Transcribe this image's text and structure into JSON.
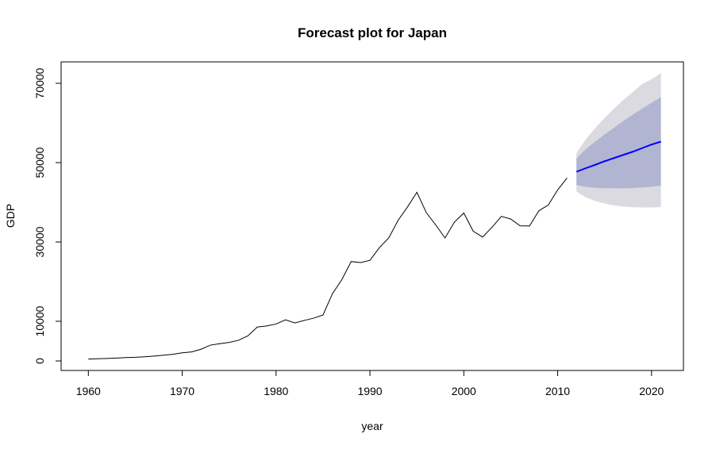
{
  "chart_data": {
    "type": "line",
    "title": "Forecast plot for Japan",
    "xlabel": "year",
    "ylabel": "GDP",
    "xlim": [
      1957.1,
      2023.4
    ],
    "ylim": [
      -2400,
      75400
    ],
    "x_ticks": [
      1960,
      1970,
      1980,
      1990,
      2000,
      2010,
      2020
    ],
    "x_tick_labels": [
      "1960",
      "1970",
      "1980",
      "1990",
      "2000",
      "2010",
      "2020"
    ],
    "y_ticks": [
      0,
      10000,
      30000,
      50000,
      70000
    ],
    "y_tick_labels": [
      "0",
      "10000",
      "30000",
      "50000",
      "70000"
    ],
    "grid": false,
    "legend": "none",
    "colors": {
      "history": "#000000",
      "forecast": "#0000ff",
      "band_95": "#dadae0",
      "band_80": "#b1b5d1"
    },
    "series": [
      {
        "type": "history",
        "x": [
          1960,
          1961,
          1962,
          1963,
          1964,
          1965,
          1966,
          1967,
          1968,
          1969,
          1970,
          1971,
          1972,
          1973,
          1974,
          1975,
          1976,
          1977,
          1978,
          1979,
          1980,
          1981,
          1982,
          1983,
          1984,
          1985,
          1986,
          1987,
          1988,
          1989,
          1990,
          1991,
          1992,
          1993,
          1994,
          1995,
          1996,
          1997,
          1998,
          1999,
          2000,
          2001,
          2002,
          2003,
          2004,
          2005,
          2006,
          2007,
          2008,
          2009,
          2010,
          2011
        ],
        "values": [
          480,
          560,
          630,
          720,
          840,
          920,
          1060,
          1230,
          1450,
          1670,
          2040,
          2270,
          2950,
          3990,
          4350,
          4680,
          5210,
          6330,
          8550,
          8820,
          9310,
          10360,
          9580,
          10210,
          10790,
          11580,
          16930,
          20480,
          25060,
          24810,
          25360,
          28540,
          31010,
          35450,
          38810,
          42520,
          37420,
          34300,
          31000,
          35000,
          37300,
          32720,
          31240,
          33690,
          36440,
          35780,
          34080,
          34030,
          37870,
          39320,
          43120,
          46140
        ]
      },
      {
        "type": "forecast",
        "x": [
          2012,
          2013,
          2014,
          2015,
          2016,
          2017,
          2018,
          2019,
          2020,
          2021
        ],
        "values": [
          47700,
          48600,
          49450,
          50350,
          51150,
          51950,
          52750,
          53650,
          54550,
          55300
        ],
        "lo80": [
          44350,
          43900,
          43680,
          43560,
          43520,
          43520,
          43600,
          43740,
          43920,
          44150
        ],
        "hi80": [
          51050,
          53400,
          55300,
          57100,
          58800,
          60500,
          62100,
          63600,
          65100,
          66500
        ],
        "lo95": [
          42700,
          41250,
          40300,
          39700,
          39200,
          38920,
          38760,
          38700,
          38700,
          38800
        ],
        "hi95": [
          52400,
          55900,
          58700,
          61300,
          63600,
          65800,
          67800,
          69800,
          71000,
          72600
        ]
      }
    ]
  }
}
